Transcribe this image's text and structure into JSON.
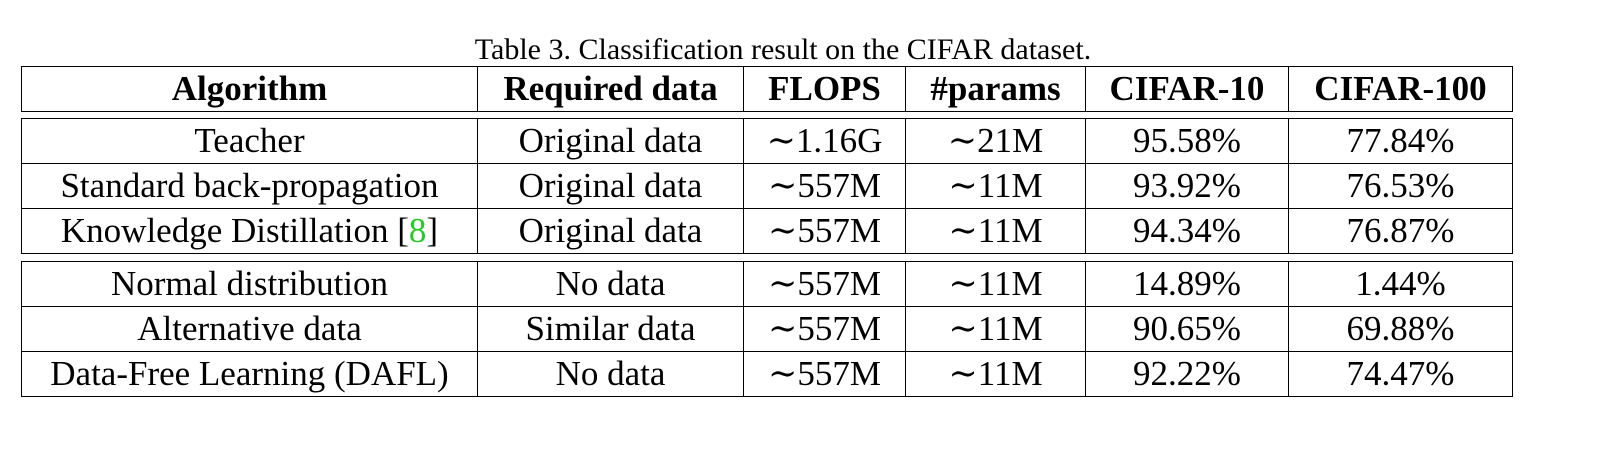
{
  "caption": "Table 3. Classification result on the CIFAR dataset.",
  "header": {
    "algorithm": "Algorithm",
    "required_data": "Required data",
    "flops": "FLOPS",
    "params": "#params",
    "cifar10": "CIFAR-10",
    "cifar100": "CIFAR-100"
  },
  "group1": [
    {
      "algorithm": "Teacher",
      "ref": "",
      "required_data": "Original data",
      "flops": "∼1.16G",
      "params": "∼21M",
      "cifar10": "95.58%",
      "cifar100": "77.84%"
    },
    {
      "algorithm": "Standard back-propagation",
      "ref": "",
      "required_data": "Original data",
      "flops": "∼557M",
      "params": "∼11M",
      "cifar10": "93.92%",
      "cifar100": "76.53%"
    },
    {
      "algorithm": "Knowledge Distillation [",
      "ref": "8",
      "ref_close": "]",
      "required_data": "Original data",
      "flops": "∼557M",
      "params": "∼11M",
      "cifar10": "94.34%",
      "cifar100": "76.87%"
    }
  ],
  "group2": [
    {
      "algorithm": "Normal distribution",
      "ref": "",
      "required_data": "No data",
      "flops": "∼557M",
      "params": "∼11M",
      "cifar10": "14.89%",
      "cifar100": "1.44%"
    },
    {
      "algorithm": "Alternative data",
      "ref": "",
      "required_data": "Similar data",
      "flops": "∼557M",
      "params": "∼11M",
      "cifar10": "90.65%",
      "cifar100": "69.88%"
    },
    {
      "algorithm": "Data-Free Learning (DAFL)",
      "ref": "",
      "required_data": "No data",
      "flops": "∼557M",
      "params": "∼11M",
      "cifar10": "92.22%",
      "cifar100": "74.47%"
    }
  ],
  "colors": {
    "text": "#000000",
    "reference_link": "#22cc22",
    "border": "#000000",
    "background": "#ffffff"
  }
}
